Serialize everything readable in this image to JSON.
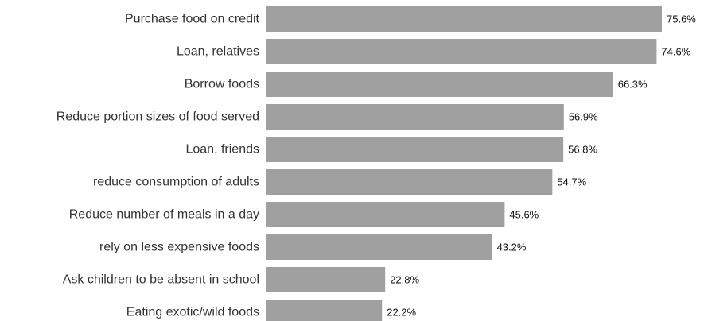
{
  "chart_data": {
    "type": "bar",
    "orientation": "horizontal",
    "categories": [
      "Purchase food on credit",
      "Loan, relatives",
      "Borrow foods",
      "Reduce portion sizes of food served",
      "Loan, friends",
      "reduce consumption of adults",
      "Reduce number of meals in a day",
      "rely on less expensive foods",
      "Ask children to be absent in school",
      "Eating exotic/wild foods"
    ],
    "values": [
      75.6,
      74.6,
      66.3,
      56.9,
      56.8,
      54.7,
      45.6,
      43.2,
      22.8,
      22.2
    ],
    "data_labels": [
      "75.6%",
      "74.6%",
      "66.3%",
      "56.9%",
      "56.8%",
      "54.7%",
      "45.6%",
      "43.2%",
      "22.8%",
      "22.2%"
    ],
    "value_unit": "%",
    "title": "",
    "xlabel": "",
    "ylabel": "",
    "xlim": [
      0,
      75.6
    ],
    "grid": false,
    "legend": "none",
    "colors": {
      "bar": "#a0a0a0",
      "category_text": "#333333",
      "value_text": "#111111"
    }
  }
}
